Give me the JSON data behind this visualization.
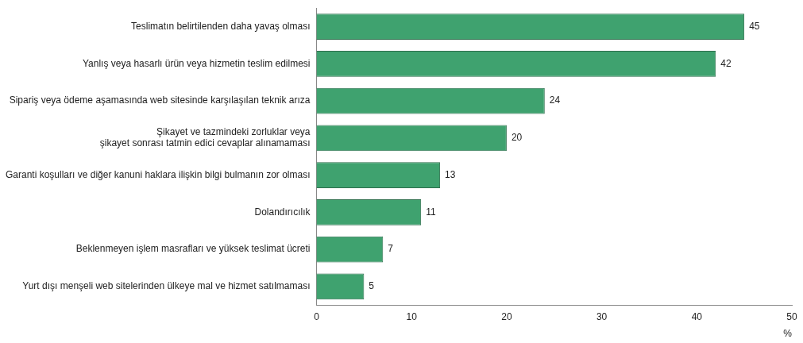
{
  "chart_data": {
    "type": "bar",
    "orientation": "horizontal",
    "xlabel": "%",
    "categories": [
      "Teslimatın belirtilenden daha yavaş olması",
      "Yanlış veya hasarlı ürün veya hizmetin teslim edilmesi",
      "Sipariş veya ödeme aşamasında web sitesinde karşılaşılan teknik arıza",
      "Şikayet ve tazmindeki zorluklar veya\nşikayet sonrası tatmin edici cevaplar alınamaması",
      "Garanti koşulları ve diğer kanuni haklara ilişkin bilgi bulmanın zor olması",
      "Dolandırıcılık",
      "Beklenmeyen işlem masrafları ve yüksek teslimat ücreti",
      "Yurt dışı menşeli web sitelerinden ülkeye mal ve hizmet satılmaması"
    ],
    "values": [
      45,
      42,
      24,
      20,
      13,
      11,
      7,
      5
    ],
    "color": "#3fa26f",
    "xlim": [
      0,
      50
    ],
    "xticks": [
      0,
      10,
      20,
      30,
      40,
      50
    ],
    "grid": false,
    "legend": false,
    "data_labels": true
  }
}
